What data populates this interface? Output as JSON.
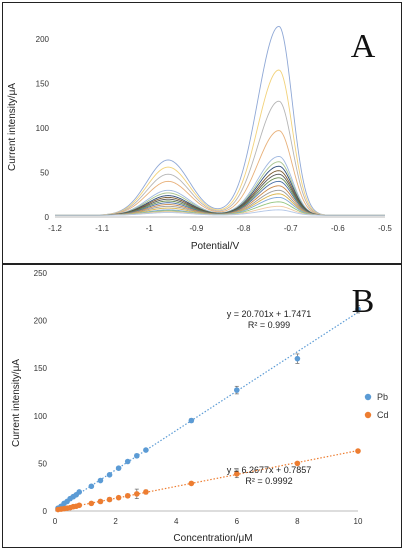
{
  "chart_data": [
    {
      "type": "line",
      "panel_label": "A",
      "xlabel": "Potential/V",
      "ylabel": "Current intensity/μA",
      "xlim": [
        -1.2,
        -0.5
      ],
      "ylim": [
        0,
        220
      ],
      "x_ticks": [
        "-1.2",
        "-1.1",
        "-1",
        "-0.9",
        "-0.8",
        "-0.7",
        "-0.6",
        "-0.5"
      ],
      "y_ticks": [
        "0",
        "50",
        "100",
        "150",
        "200"
      ],
      "grid": false,
      "legend": "none",
      "baseline_current": 2,
      "peak_potentials": {
        "Cd": -0.96,
        "Pb": -0.725
      },
      "series": [
        {
          "cd_peak": 62,
          "pb_peak": 212,
          "color": "#8fa8d6"
        },
        {
          "cd_peak": 54,
          "pb_peak": 163,
          "color": "#f2d27a"
        },
        {
          "cd_peak": 46,
          "pb_peak": 128,
          "color": "#b5b5b5"
        },
        {
          "cd_peak": 38,
          "pb_peak": 95,
          "color": "#e8b079"
        },
        {
          "cd_peak": 28,
          "pb_peak": 66,
          "color": "#9fb8e0"
        },
        {
          "cd_peak": 25,
          "pb_peak": 60,
          "color": "#a8c48e"
        },
        {
          "cd_peak": 22,
          "pb_peak": 55,
          "color": "#2d4b7a"
        },
        {
          "cd_peak": 20,
          "pb_peak": 50,
          "color": "#7a5a2f"
        },
        {
          "cd_peak": 18,
          "pb_peak": 46,
          "color": "#555555"
        },
        {
          "cd_peak": 16,
          "pb_peak": 42,
          "color": "#6b8f4e"
        },
        {
          "cd_peak": 14,
          "pb_peak": 38,
          "color": "#4a6fa5"
        },
        {
          "cd_peak": 12,
          "pb_peak": 33,
          "color": "#c98a4b"
        },
        {
          "cd_peak": 10,
          "pb_peak": 28,
          "color": "#9a9a9a"
        },
        {
          "cd_peak": 8,
          "pb_peak": 24,
          "color": "#d9b44a"
        },
        {
          "cd_peak": 6,
          "pb_peak": 20,
          "color": "#7fa7d9"
        },
        {
          "cd_peak": 5,
          "pb_peak": 15,
          "color": "#93c47d"
        },
        {
          "cd_peak": 4,
          "pb_peak": 10,
          "color": "#f0c9a0"
        },
        {
          "cd_peak": 3,
          "pb_peak": 6,
          "color": "#b4c7e7"
        }
      ]
    },
    {
      "type": "scatter",
      "panel_label": "B",
      "xlabel": "Concentration/μM",
      "ylabel": "Current intensity/μA",
      "xlim": [
        0,
        10
      ],
      "ylim": [
        0,
        250
      ],
      "x_ticks": [
        "0",
        "2",
        "4",
        "6",
        "8",
        "10"
      ],
      "y_ticks": [
        "0",
        "50",
        "100",
        "150",
        "200",
        "250"
      ],
      "grid": false,
      "legend": "right",
      "series": [
        {
          "name": "Pb",
          "color": "#5b9bd5",
          "x": [
            0.1,
            0.2,
            0.3,
            0.4,
            0.5,
            0.6,
            0.7,
            0.8,
            1.2,
            1.5,
            1.8,
            2.1,
            2.4,
            2.7,
            3.0,
            4.5,
            6.0,
            8.0,
            10.0
          ],
          "y": [
            3,
            5,
            8,
            10,
            13,
            15,
            17,
            20,
            26,
            32,
            38,
            45,
            52,
            58,
            64,
            95,
            127,
            160,
            212
          ],
          "errors": [
            0.5,
            0.5,
            0.5,
            0.5,
            0.8,
            0.8,
            0.8,
            1,
            1,
            1,
            1.5,
            1.5,
            1.5,
            2,
            1.5,
            2,
            4,
            5,
            4
          ],
          "fit_slope": 20.701,
          "fit_intercept": 1.7471,
          "equation": "y = 20.701x + 1.7471",
          "r2": "R² = 0.999"
        },
        {
          "name": "Cd",
          "color": "#ed7d31",
          "x": [
            0.1,
            0.2,
            0.3,
            0.4,
            0.5,
            0.6,
            0.7,
            0.8,
            1.2,
            1.5,
            1.8,
            2.1,
            2.4,
            2.7,
            3.0,
            4.5,
            6.0,
            8.0,
            10.0
          ],
          "y": [
            1.5,
            2,
            2.5,
            3,
            3.5,
            4.5,
            5,
            6,
            8,
            10,
            12,
            14,
            16,
            18,
            20,
            29,
            39,
            50,
            63
          ],
          "errors": [
            0.5,
            0.5,
            0.5,
            0.5,
            0.5,
            0.5,
            0.5,
            0.5,
            1,
            2,
            2,
            1.5,
            2,
            5,
            2,
            1.5,
            4,
            1.5,
            1.5
          ],
          "fit_slope": 6.2677,
          "fit_intercept": 0.7857,
          "equation": "y = 6.2677x + 0.7857",
          "r2": "R² = 0.9992"
        }
      ]
    }
  ]
}
